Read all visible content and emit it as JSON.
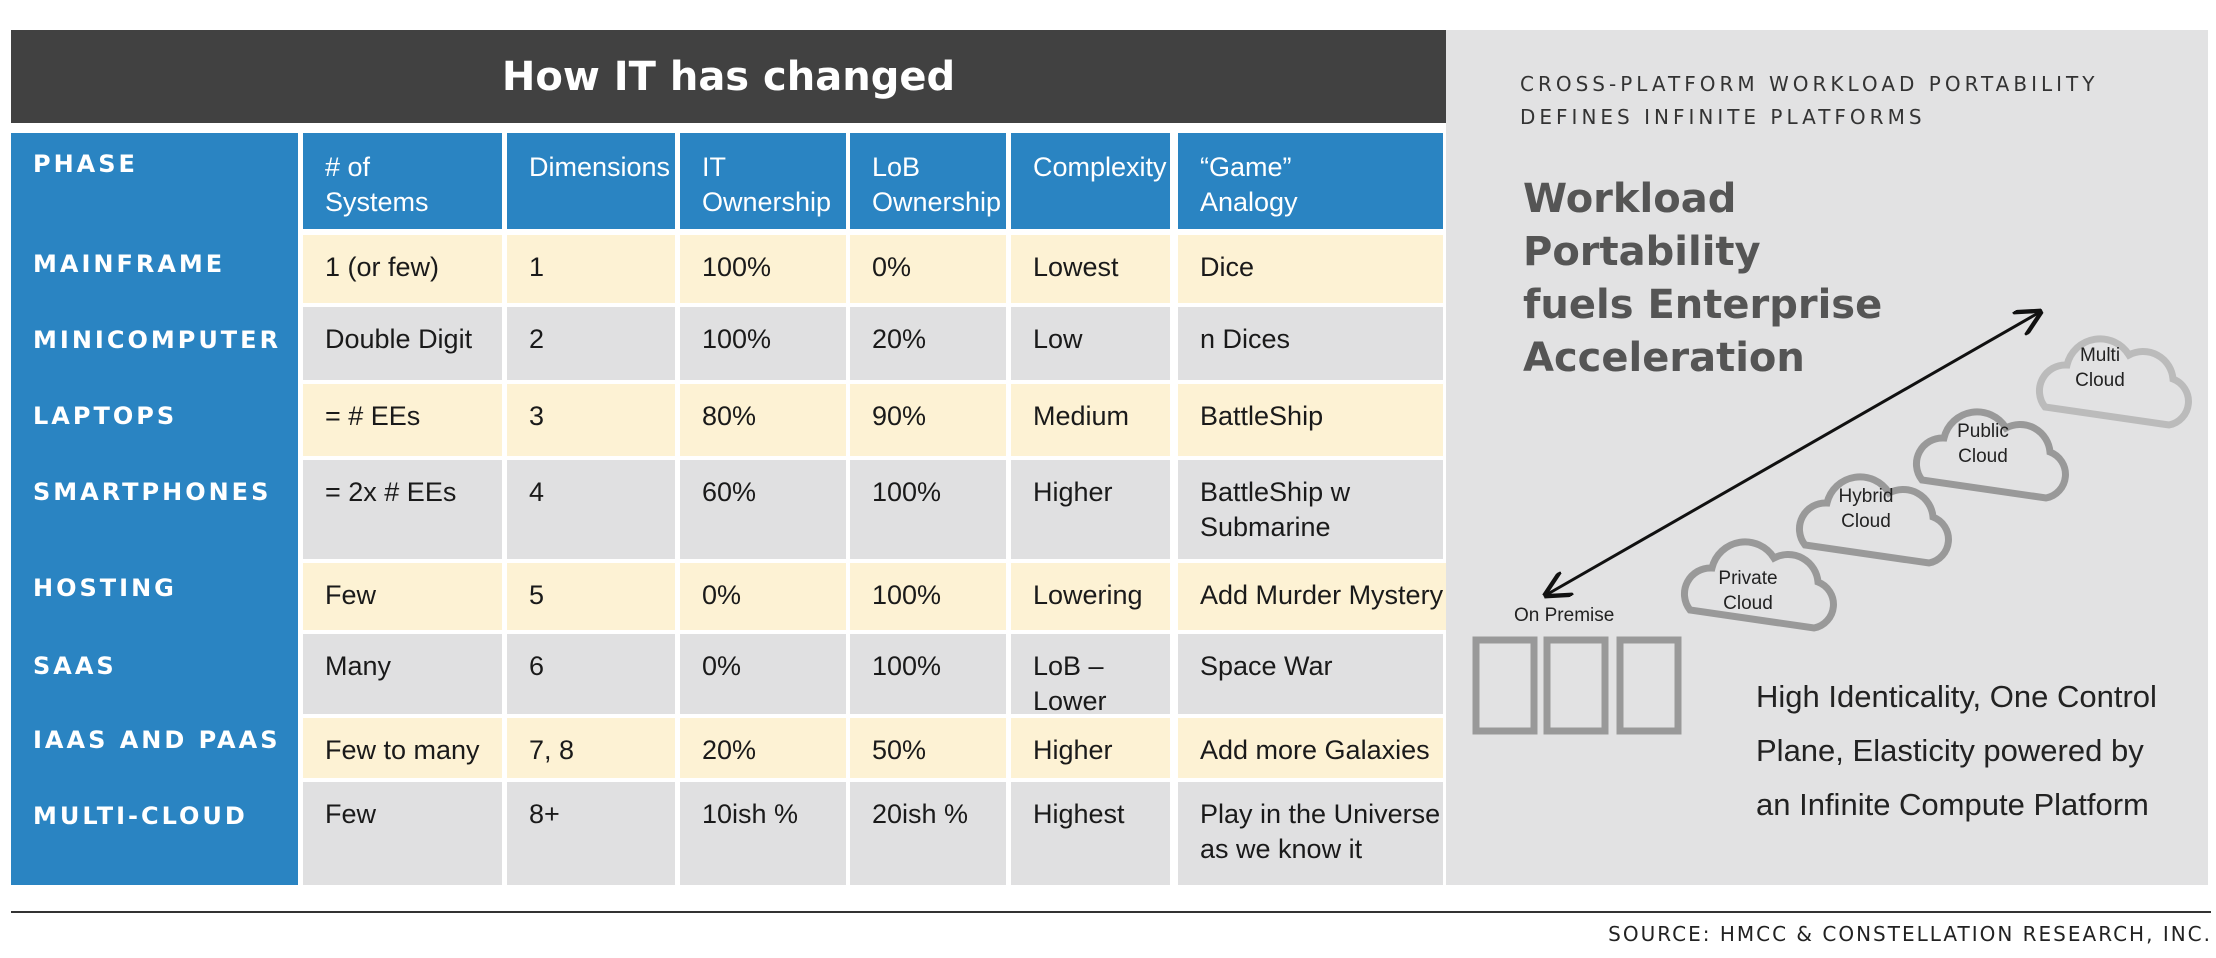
{
  "title": "How IT has changed",
  "headers": [
    "PHASE",
    "# of\nSystems",
    "Dimensions",
    "IT\nOwnership",
    "LoB\nOwnership",
    "Complexity",
    "“Game”\nAnalogy"
  ],
  "rows": [
    {
      "phase": "MAINFRAME",
      "cells": [
        "1 (or few)",
        "1",
        "100%",
        "0%",
        "Lowest",
        "Dice"
      ]
    },
    {
      "phase": "MINICOMPUTER",
      "cells": [
        "Double Digit",
        "2",
        "100%",
        "20%",
        "Low",
        "n Dices"
      ]
    },
    {
      "phase": "LAPTOPS",
      "cells": [
        "= # EEs",
        "3",
        "80%",
        "90%",
        "Medium",
        "BattleShip"
      ]
    },
    {
      "phase": "SMARTPHONES",
      "cells": [
        "= 2x # EEs",
        "4",
        "60%",
        "100%",
        "Higher",
        "BattleShip w\nSubmarine"
      ]
    },
    {
      "phase": "HOSTING",
      "cells": [
        "Few",
        "5",
        "0%",
        "100%",
        "Lowering",
        "Add Murder Mystery"
      ]
    },
    {
      "phase": "SAAS",
      "cells": [
        "Many",
        "6",
        "0%",
        "100%",
        "LoB – Lower\nIT – Higher",
        "Space War"
      ]
    },
    {
      "phase": "IAAS AND PAAS",
      "cells": [
        "Few to many",
        "7, 8",
        "20%",
        "50%",
        "Higher",
        "Add more Galaxies"
      ]
    },
    {
      "phase": "MULTI-CLOUD",
      "cells": [
        "Few",
        "8+",
        "10ish %",
        "20ish %",
        "Highest",
        "Play in the Universe\nas we know it"
      ]
    }
  ],
  "panel": {
    "subtitle": "CROSS-PLATFORM WORKLOAD PORTABILITY\nDEFINES INFINITE PLATFORMS",
    "headline": "Workload\nPortability\nfuels Enterprise\nAcceleration",
    "clouds": [
      "Private Cloud",
      "Hybrid\nCloud",
      "Public\nCloud",
      "Multi\nCloud"
    ],
    "on_premise": "On Premise",
    "bottom_text": "High Identicality, One Control\nPlane, Elasticity powered by\nan Infinite Compute Platform"
  },
  "source": "SOURCE: HMCC & CONSTELLATION RESEARCH, INC.",
  "colors": {
    "header_blue": "#2a84c2",
    "title_dark": "#414141",
    "row_cream": "#fdf2d4",
    "row_gray": "#e0e0e1",
    "panel_gray": "#e2e2e3"
  }
}
